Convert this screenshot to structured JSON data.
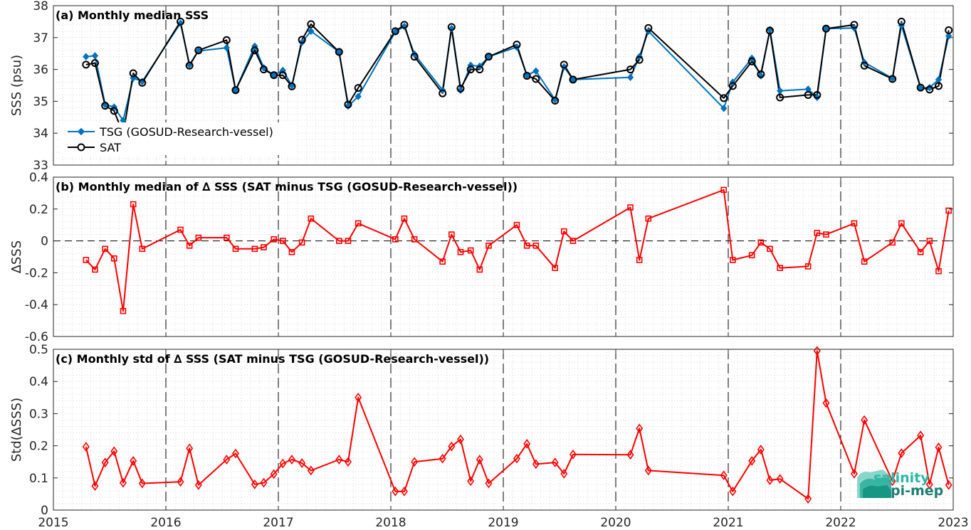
{
  "chart_data": [
    {
      "type": "line",
      "title": "(a) Monthly median SSS",
      "ylabel": "SSS (psu)",
      "xlim": [
        2015,
        2023
      ],
      "ylim": [
        33,
        38
      ],
      "yticks": [
        33,
        34,
        35,
        36,
        37,
        38
      ],
      "ytick_labels": [
        "33",
        "34",
        "35",
        "36",
        "37",
        "38"
      ],
      "grid": "dotted",
      "legend": "bottom-left",
      "series": [
        {
          "name": "TSG (GOSUD-Research-vessel)",
          "color": "#0072BD",
          "marker": "diamond",
          "x": [
            2015.29,
            2015.37,
            2015.46,
            2015.54,
            2015.62,
            2015.71,
            2015.79,
            2016.13,
            2016.21,
            2016.29,
            2016.54,
            2016.62,
            2016.79,
            2016.87,
            2016.96,
            2017.04,
            2017.12,
            2017.21,
            2017.29,
            2017.54,
            2017.62,
            2017.71,
            2018.04,
            2018.12,
            2018.21,
            2018.46,
            2018.54,
            2018.62,
            2018.71,
            2018.79,
            2018.87,
            2019.12,
            2019.21,
            2019.29,
            2019.46,
            2019.54,
            2019.62,
            2020.13,
            2020.21,
            2020.29,
            2020.96,
            2021.04,
            2021.21,
            2021.29,
            2021.37,
            2021.46,
            2021.71,
            2021.79,
            2021.87,
            2022.12,
            2022.21,
            2022.46,
            2022.54,
            2022.71,
            2022.79,
            2022.87,
            2022.96
          ],
          "y": [
            36.4,
            36.43,
            34.9,
            34.82,
            34.4,
            35.73,
            35.62,
            37.45,
            36.15,
            36.58,
            36.68,
            35.35,
            36.73,
            36.05,
            35.82,
            35.97,
            35.5,
            36.85,
            37.2,
            36.55,
            34.85,
            35.15,
            37.18,
            37.35,
            36.48,
            35.35,
            37.28,
            35.35,
            36.13,
            36.1,
            36.4,
            36.7,
            35.82,
            35.95,
            35.05,
            36.08,
            35.68,
            35.75,
            36.4,
            37.2,
            34.78,
            35.6,
            36.35,
            35.8,
            37.25,
            35.33,
            35.38,
            35.12,
            37.28,
            37.3,
            36.22,
            35.72,
            37.38,
            35.42,
            35.43,
            35.68,
            37.05
          ]
        },
        {
          "name": "SAT",
          "color": "#000000",
          "marker": "circle",
          "x": [
            2015.29,
            2015.37,
            2015.46,
            2015.54,
            2015.62,
            2015.71,
            2015.79,
            2016.13,
            2016.21,
            2016.29,
            2016.54,
            2016.62,
            2016.79,
            2016.87,
            2016.96,
            2017.04,
            2017.12,
            2017.21,
            2017.29,
            2017.54,
            2017.62,
            2017.71,
            2018.04,
            2018.12,
            2018.21,
            2018.46,
            2018.54,
            2018.62,
            2018.71,
            2018.79,
            2018.87,
            2019.12,
            2019.21,
            2019.29,
            2019.46,
            2019.54,
            2019.62,
            2020.13,
            2020.21,
            2020.29,
            2020.96,
            2021.04,
            2021.21,
            2021.29,
            2021.37,
            2021.46,
            2021.71,
            2021.79,
            2021.87,
            2022.12,
            2022.21,
            2022.46,
            2022.54,
            2022.71,
            2022.79,
            2022.87,
            2022.96
          ],
          "y": [
            36.15,
            36.2,
            34.86,
            34.7,
            33.97,
            35.88,
            35.58,
            37.5,
            36.12,
            36.6,
            36.92,
            35.35,
            36.6,
            36.0,
            35.82,
            35.82,
            35.47,
            36.93,
            37.42,
            36.55,
            34.9,
            35.42,
            37.2,
            37.4,
            36.4,
            35.25,
            37.33,
            35.4,
            36.0,
            36.0,
            36.4,
            36.78,
            35.8,
            35.7,
            35.02,
            36.15,
            35.68,
            36.0,
            36.3,
            37.3,
            35.1,
            35.48,
            36.25,
            35.85,
            37.22,
            35.12,
            35.2,
            35.2,
            37.28,
            37.4,
            36.12,
            35.7,
            37.5,
            35.43,
            35.37,
            35.48,
            37.23
          ]
        }
      ]
    },
    {
      "type": "line",
      "title": "(b) Monthly median of ∆ SSS (SAT minus TSG (GOSUD-Research-vessel))",
      "ylabel": "∆SSS",
      "xlim": [
        2015,
        2023
      ],
      "ylim": [
        -0.6,
        0.4
      ],
      "yticks": [
        -0.6,
        -0.4,
        -0.2,
        0,
        0.2,
        0.4
      ],
      "ytick_labels": [
        "-0.6",
        "-0.4",
        "-0.2",
        "0",
        "0.2",
        "0.4"
      ],
      "zero_line": "dashed",
      "grid": "dotted",
      "series": [
        {
          "color": "#FF0000",
          "marker": "square",
          "x": [
            2015.29,
            2015.37,
            2015.46,
            2015.54,
            2015.62,
            2015.71,
            2015.79,
            2016.13,
            2016.21,
            2016.29,
            2016.54,
            2016.62,
            2016.79,
            2016.87,
            2016.96,
            2017.04,
            2017.12,
            2017.21,
            2017.29,
            2017.54,
            2017.62,
            2017.71,
            2018.04,
            2018.12,
            2018.21,
            2018.46,
            2018.54,
            2018.62,
            2018.71,
            2018.79,
            2018.87,
            2019.12,
            2019.21,
            2019.29,
            2019.46,
            2019.54,
            2019.62,
            2020.13,
            2020.21,
            2020.29,
            2020.96,
            2021.04,
            2021.21,
            2021.29,
            2021.37,
            2021.46,
            2021.71,
            2021.79,
            2021.87,
            2022.12,
            2022.21,
            2022.46,
            2022.54,
            2022.71,
            2022.79,
            2022.87,
            2022.96
          ],
          "y": [
            -0.12,
            -0.18,
            -0.05,
            -0.11,
            -0.44,
            0.23,
            -0.05,
            0.07,
            -0.03,
            0.02,
            0.02,
            -0.05,
            -0.05,
            -0.04,
            0.01,
            0.0,
            -0.07,
            -0.01,
            0.14,
            0.0,
            0.0,
            0.11,
            0.01,
            0.14,
            0.01,
            -0.13,
            0.04,
            -0.07,
            -0.06,
            -0.18,
            -0.03,
            0.1,
            -0.03,
            -0.03,
            -0.17,
            0.06,
            0.0,
            0.21,
            -0.12,
            0.14,
            0.32,
            -0.12,
            -0.09,
            -0.01,
            -0.05,
            -0.17,
            -0.16,
            0.05,
            0.04,
            0.11,
            -0.13,
            -0.01,
            0.11,
            -0.07,
            0.0,
            -0.19,
            0.19
          ]
        }
      ]
    },
    {
      "type": "line",
      "title": "(c) Monthly std of ∆ SSS (SAT minus TSG (GOSUD-Research-vessel))",
      "ylabel": "Std(∆SSS)",
      "xlim": [
        2015,
        2023
      ],
      "ylim": [
        0,
        0.5
      ],
      "yticks": [
        0,
        0.1,
        0.2,
        0.3,
        0.4,
        0.5
      ],
      "ytick_labels": [
        "0",
        "0.1",
        "0.2",
        "0.3",
        "0.4",
        "0.5"
      ],
      "xticks": [
        2015,
        2016,
        2017,
        2018,
        2019,
        2020,
        2021,
        2022,
        2023
      ],
      "xtick_labels": [
        "2015",
        "2016",
        "2017",
        "2018",
        "2019",
        "2020",
        "2021",
        "2022",
        "2023"
      ],
      "grid": "dotted",
      "series": [
        {
          "color": "#FF0000",
          "marker": "diamond",
          "x": [
            2015.29,
            2015.37,
            2015.46,
            2015.54,
            2015.62,
            2015.71,
            2015.79,
            2016.13,
            2016.21,
            2016.29,
            2016.54,
            2016.62,
            2016.79,
            2016.87,
            2016.96,
            2017.04,
            2017.12,
            2017.21,
            2017.29,
            2017.54,
            2017.62,
            2017.71,
            2018.04,
            2018.12,
            2018.21,
            2018.46,
            2018.54,
            2018.62,
            2018.71,
            2018.79,
            2018.87,
            2019.12,
            2019.21,
            2019.29,
            2019.46,
            2019.54,
            2019.62,
            2020.13,
            2020.21,
            2020.29,
            2020.96,
            2021.04,
            2021.21,
            2021.29,
            2021.37,
            2021.46,
            2021.71,
            2021.79,
            2021.87,
            2022.12,
            2022.21,
            2022.46,
            2022.54,
            2022.71,
            2022.79,
            2022.87,
            2022.96
          ],
          "y": [
            0.197,
            0.075,
            0.148,
            0.183,
            0.085,
            0.153,
            0.083,
            0.088,
            0.192,
            0.078,
            0.157,
            0.176,
            0.08,
            0.085,
            0.112,
            0.145,
            0.157,
            0.146,
            0.123,
            0.157,
            0.15,
            0.35,
            0.058,
            0.058,
            0.15,
            0.16,
            0.198,
            0.22,
            0.09,
            0.157,
            0.083,
            0.16,
            0.206,
            0.143,
            0.148,
            0.113,
            0.173,
            0.172,
            0.254,
            0.123,
            0.108,
            0.058,
            0.153,
            0.188,
            0.093,
            0.097,
            0.035,
            0.495,
            0.333,
            0.113,
            0.28,
            0.09,
            0.177,
            0.232,
            0.08,
            0.195,
            0.078
          ]
        }
      ]
    }
  ],
  "vlines": [
    2016,
    2017,
    2018,
    2019,
    2020,
    2021,
    2022
  ],
  "logo": {
    "line1": "salinity",
    "line2": "pi-mep"
  }
}
